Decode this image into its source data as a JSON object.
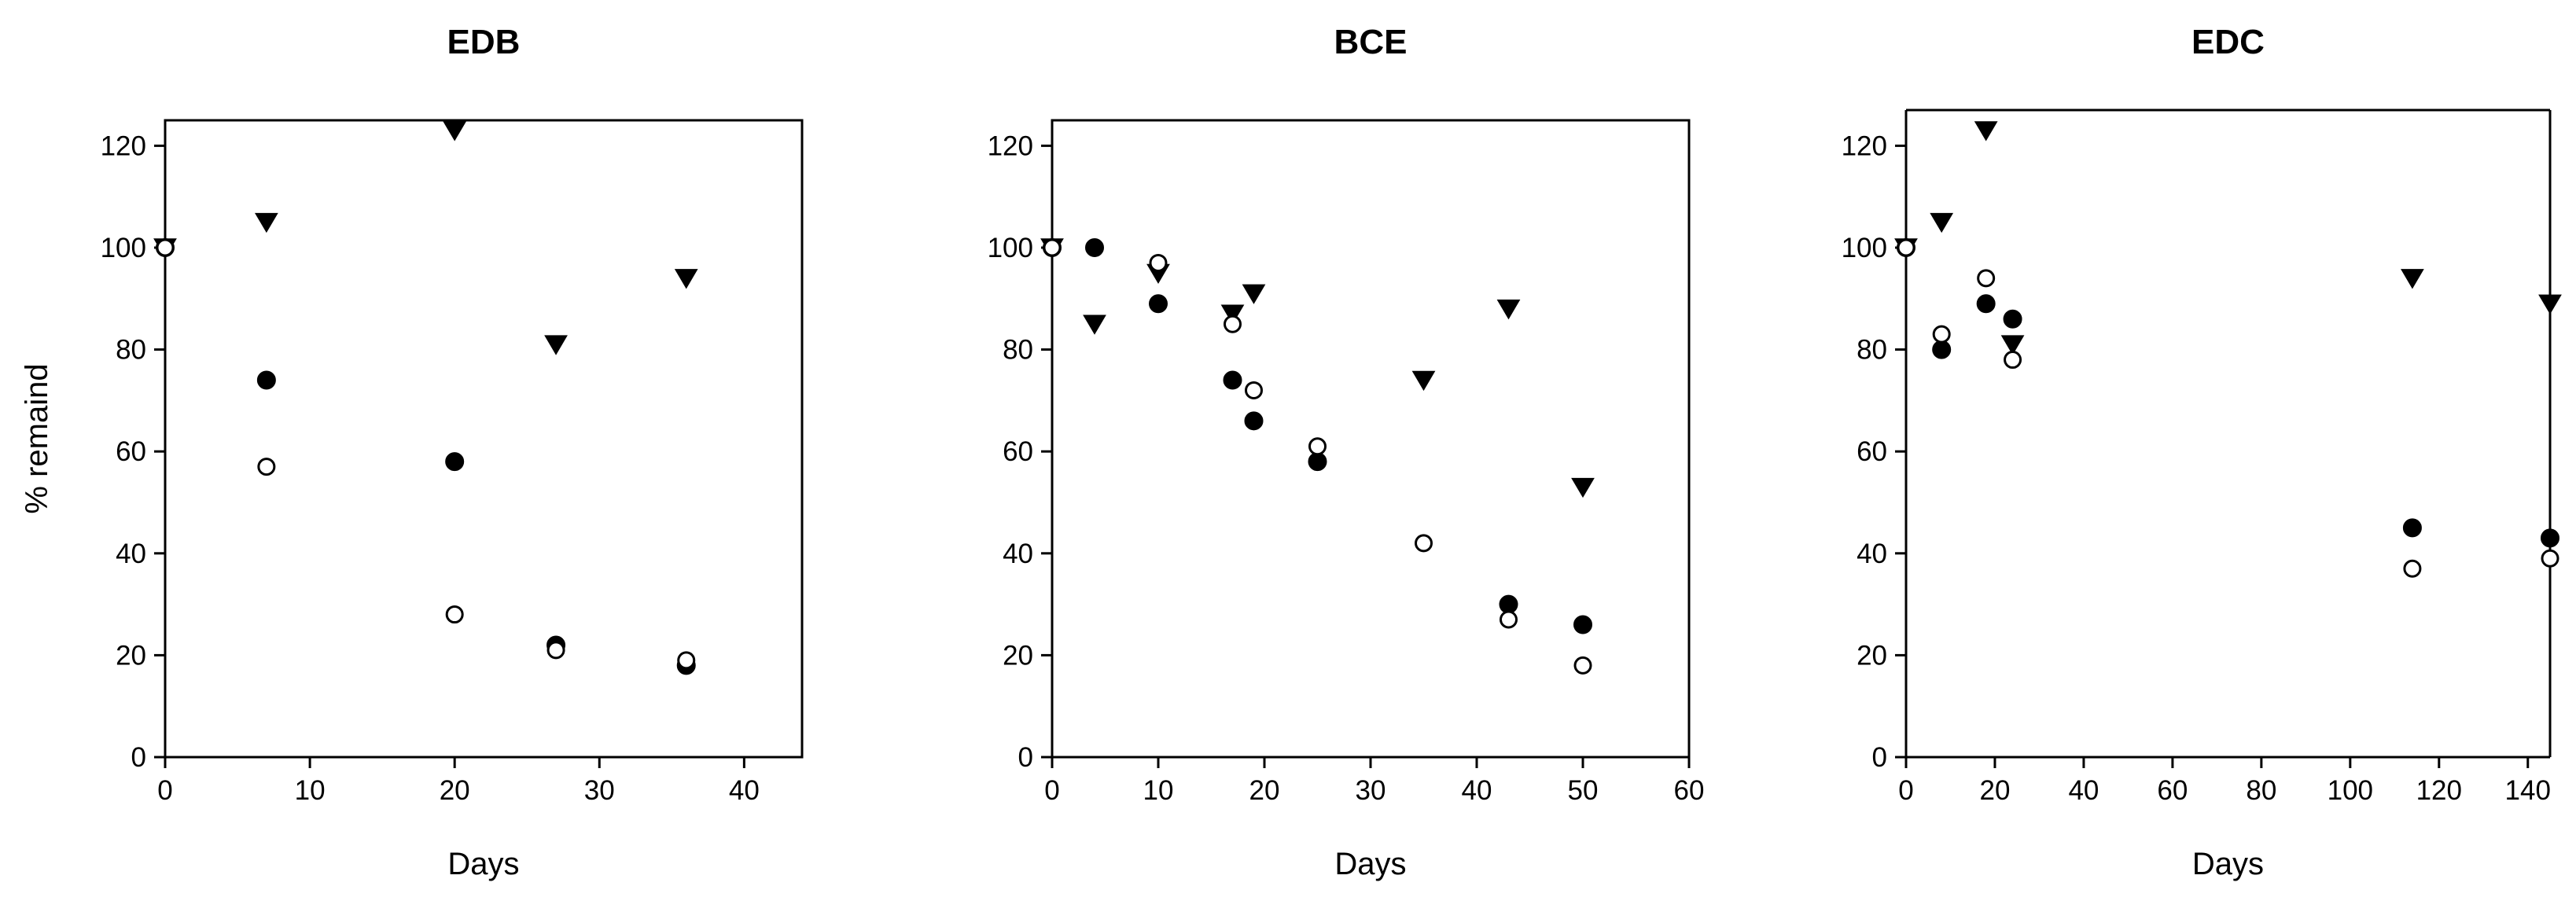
{
  "chart_data": [
    {
      "type": "scatter",
      "title": "EDB",
      "xlabel": "Days",
      "ylabel": "% remaind",
      "xlim": [
        0,
        44
      ],
      "ylim": [
        0,
        125
      ],
      "xticks": [
        "0",
        "10",
        "20",
        "30",
        "40"
      ],
      "yticks": [
        "0",
        "20",
        "40",
        "60",
        "80",
        "100",
        "120"
      ],
      "frame": "box",
      "series": [
        {
          "marker": "filled-triangle-down",
          "x": [
            0,
            7,
            20,
            27,
            36
          ],
          "y": [
            100,
            105,
            123,
            81,
            94
          ]
        },
        {
          "marker": "filled-circle",
          "x": [
            0,
            7,
            20,
            27,
            36
          ],
          "y": [
            100,
            74,
            58,
            22,
            18
          ]
        },
        {
          "marker": "open-circle",
          "x": [
            0,
            7,
            20,
            27,
            36
          ],
          "y": [
            100,
            57,
            28,
            21,
            19
          ]
        }
      ]
    },
    {
      "type": "scatter",
      "title": "BCE",
      "xlabel": "Days",
      "ylabel": "",
      "xlim": [
        0,
        60
      ],
      "ylim": [
        0,
        125
      ],
      "xticks": [
        "0",
        "10",
        "20",
        "30",
        "40",
        "50",
        "60"
      ],
      "yticks": [
        "0",
        "20",
        "40",
        "60",
        "80",
        "100",
        "120"
      ],
      "frame": "box",
      "series": [
        {
          "marker": "filled-triangle-down",
          "x": [
            0,
            4,
            10,
            17,
            19,
            35,
            43,
            50
          ],
          "y": [
            100,
            85,
            95,
            87,
            91,
            74,
            88,
            53
          ]
        },
        {
          "marker": "filled-circle",
          "x": [
            0,
            4,
            10,
            17,
            19,
            25,
            43,
            50
          ],
          "y": [
            100,
            100,
            89,
            74,
            66,
            58,
            30,
            26
          ]
        },
        {
          "marker": "open-circle",
          "x": [
            0,
            10,
            17,
            19,
            25,
            35,
            43,
            50
          ],
          "y": [
            100,
            97,
            85,
            72,
            61,
            42,
            27,
            18
          ]
        }
      ]
    },
    {
      "type": "scatter",
      "title": "EDC",
      "xlabel": "Days",
      "ylabel": "",
      "xlim": [
        0,
        145
      ],
      "ylim": [
        0,
        125
      ],
      "xticks": [
        "0",
        "20",
        "40",
        "60",
        "80",
        "100",
        "120",
        "140"
      ],
      "yticks": [
        "0",
        "20",
        "40",
        "60",
        "80",
        "100",
        "120"
      ],
      "frame": "open",
      "series": [
        {
          "marker": "filled-triangle-down",
          "x": [
            0,
            8,
            18,
            24,
            114,
            145
          ],
          "y": [
            100,
            105,
            123,
            81,
            94,
            89
          ]
        },
        {
          "marker": "filled-circle",
          "x": [
            0,
            8,
            18,
            24,
            114,
            145
          ],
          "y": [
            100,
            80,
            89,
            86,
            45,
            43
          ]
        },
        {
          "marker": "open-circle",
          "x": [
            0,
            8,
            18,
            24,
            114,
            145
          ],
          "y": [
            100,
            83,
            94,
            78,
            37,
            39
          ]
        }
      ]
    }
  ]
}
